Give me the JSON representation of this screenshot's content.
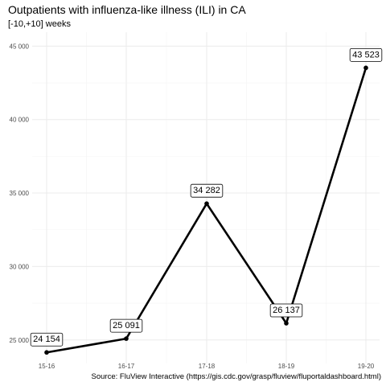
{
  "chart_data": {
    "type": "line",
    "title": "Outpatients with influenza-like illness (ILI) in CA",
    "subtitle": "[-10,+10] weeks",
    "caption": "Source: FluView Interactive (https://gis.cdc.gov/grasp/fluview/fluportaldashboard.html)",
    "xlabel": "",
    "ylabel": "",
    "categories": [
      "15-16",
      "16-17",
      "17-18",
      "18-19",
      "19-20"
    ],
    "values": [
      24154,
      25091,
      34282,
      26137,
      43523
    ],
    "data_labels": [
      "24 154",
      "25 091",
      "34 282",
      "26 137",
      "43 523"
    ],
    "y_ticks": [
      25000,
      30000,
      35000,
      40000,
      45000
    ],
    "y_tick_labels": [
      "25 000",
      "30 000",
      "35 000",
      "40 000",
      "45 000"
    ],
    "ylim": [
      23400,
      45950
    ],
    "grid": true,
    "legend": "none",
    "colors": {
      "line": "#000000",
      "grid": "#ebebeb",
      "background": "#ffffff"
    }
  }
}
